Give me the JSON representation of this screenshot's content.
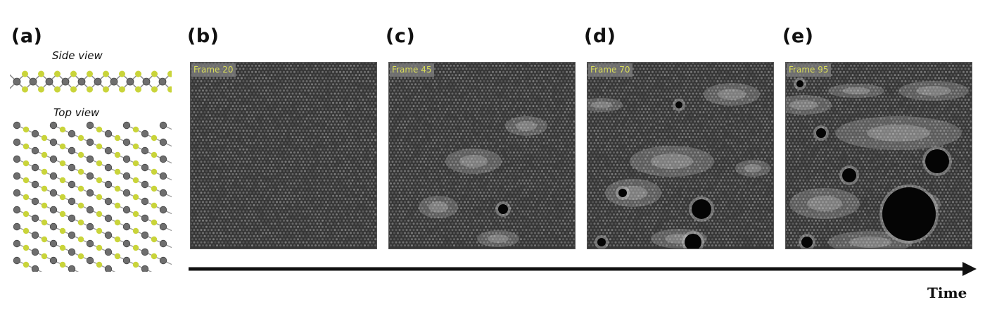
{
  "panel_a": {
    "letter": "(a)",
    "side_view_label": "Side view",
    "top_view_label": "Top view",
    "atom_colors": {
      "metal": "#6e6e6e",
      "chalcogen": "#c9d43a"
    }
  },
  "frames": [
    {
      "letter": "(b)",
      "badge": "Frame 20"
    },
    {
      "letter": "(c)",
      "badge": "Frame 45"
    },
    {
      "letter": "(d)",
      "badge": "Frame 70"
    },
    {
      "letter": "(e)",
      "badge": "Frame 95"
    }
  ],
  "timeline": {
    "label": "Time"
  },
  "colors": {
    "badge_text": "#d8dc5a",
    "hole": "#050505",
    "lattice": "#3a3a3a"
  }
}
